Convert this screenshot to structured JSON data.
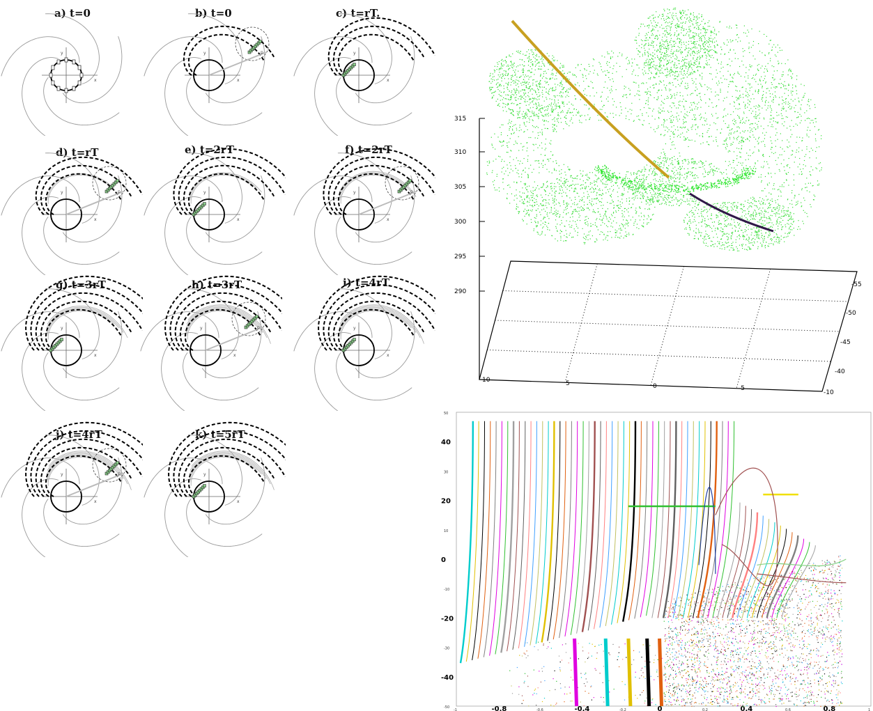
{
  "figure": {
    "panels": [
      {
        "label": "a) t=0"
      },
      {
        "label": "b) t=0"
      },
      {
        "label": "c) t=rT."
      },
      {
        "label": "d) t=rT"
      },
      {
        "label": "e) t=2rT"
      },
      {
        "label": "f) t=2rT"
      },
      {
        "label": "g) t=3rT"
      },
      {
        "label": "h) t=3rT"
      },
      {
        "label": "i) t=4rT"
      },
      {
        "label": "j) t=4rT"
      },
      {
        "label": "k) t=5rT"
      }
    ],
    "axis_letters": {
      "x": "x",
      "y": "y",
      "p": "p"
    }
  },
  "chart_data": [
    {
      "type": "scatter",
      "title": "",
      "xlabel": "",
      "ylabel": "",
      "z_ticks": [
        "315",
        "310",
        "305",
        "300",
        "295",
        "290"
      ],
      "x_ticks": [
        "10",
        "5",
        "0",
        "-5",
        "-10"
      ],
      "y_ticks": [
        "-55",
        "-50",
        "-45",
        "-40"
      ],
      "zlim": [
        290,
        315
      ],
      "series": [
        {
          "color": "#33dd33",
          "description_points": "cloud"
        },
        {
          "color": "#c8a020",
          "x": [
            -9,
            0
          ],
          "z": [
            329,
            305
          ]
        },
        {
          "color": "#301848",
          "x": [
            2,
            8
          ],
          "z": [
            303,
            299
          ]
        }
      ],
      "grid": true
    },
    {
      "type": "line",
      "title": "",
      "xlabel": "",
      "ylabel": "",
      "xlim": [
        -1,
        1
      ],
      "ylim": [
        -50,
        50
      ],
      "x_tick_labels_major": [
        "-0.8",
        "-0.4",
        "0",
        "0.4",
        "0.8"
      ],
      "x_tick_labels_minor": [
        "-1",
        "-0.6",
        "-0.2",
        "0.2",
        "0.6",
        "1"
      ],
      "y_tick_labels_major": [
        "40",
        "20",
        "0",
        "-20",
        "-40"
      ],
      "y_tick_labels_minor": [
        "50",
        "30",
        "10",
        "-10",
        "-30",
        "-50"
      ],
      "series_count": 60,
      "grid": false
    }
  ]
}
